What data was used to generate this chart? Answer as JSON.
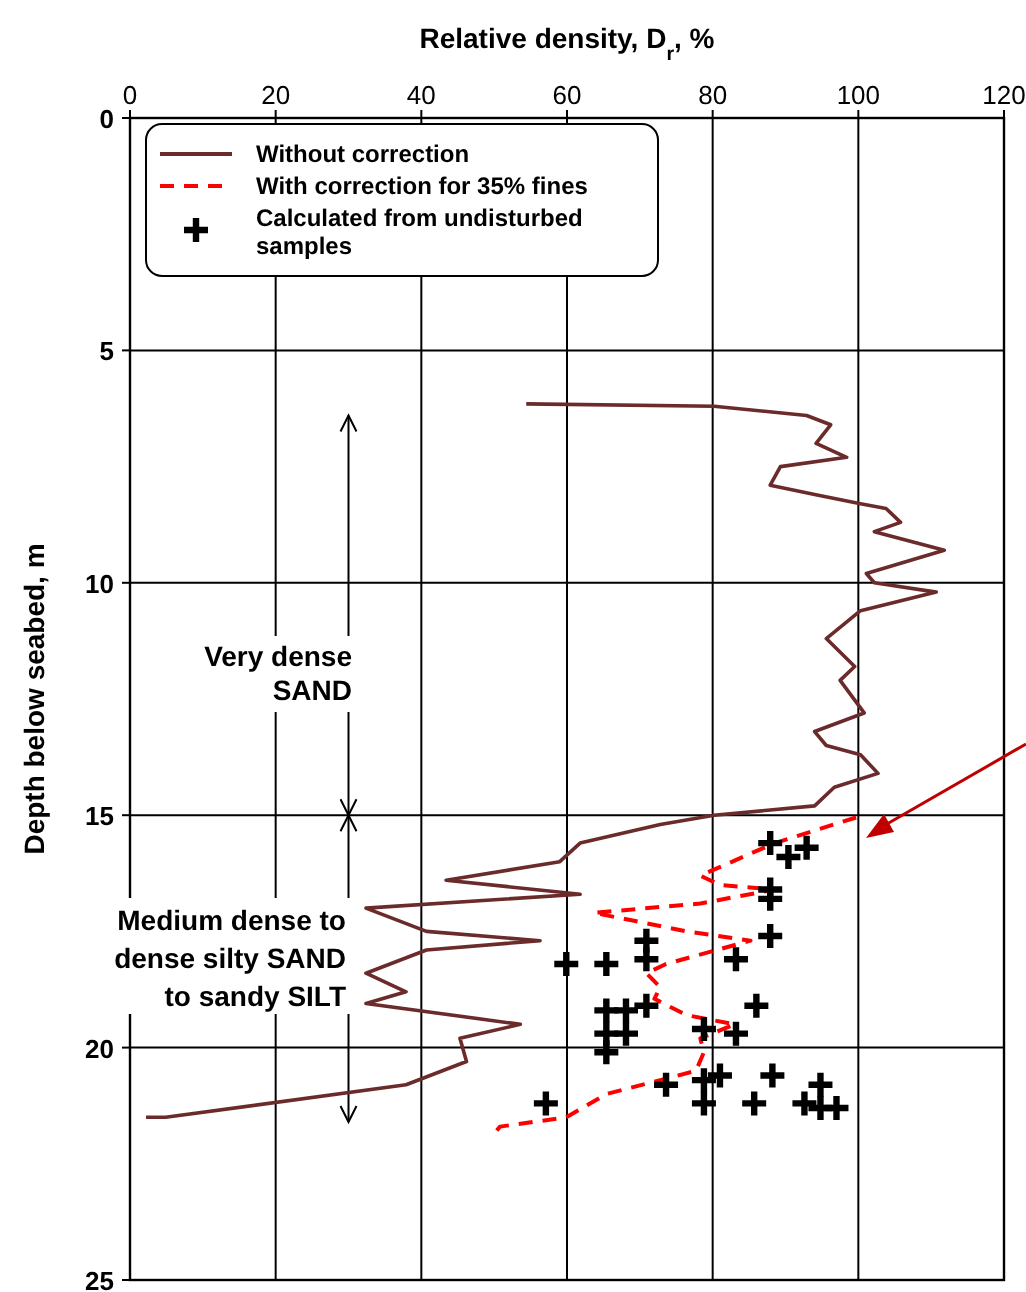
{
  "chart_data": {
    "type": "line",
    "xlabel": "Relative density, D$_{r}$, %",
    "ylabel": "Depth below seabed, m",
    "xlim": [
      0,
      120
    ],
    "xticks": [
      0,
      20,
      40,
      60,
      80,
      100,
      120
    ],
    "ylim": [
      25,
      0
    ],
    "yticks": [
      0,
      5,
      10,
      15,
      20,
      25
    ],
    "grid": true,
    "legend": "top left",
    "annotations": [
      "Very dense SAND",
      "Medium dense to dense silty SAND to sandy SILT"
    ],
    "series": [
      {
        "name": "Without correction",
        "color": "#6b2b2b",
        "line_style": "solid",
        "x": [
          54.4,
          80.2,
          92.9,
          96.2,
          94.2,
          98.4,
          89.3,
          87.9,
          94,
          100.3,
          103.8,
          105.8,
          102.2,
          111.8,
          101.1,
          102.2,
          110.7,
          100.3,
          95.6,
          99.5,
          97.5,
          100.8,
          94,
          95.6,
          100.3,
          102.7,
          96.7,
          94,
          80.2,
          72.8,
          61.8,
          59,
          43.4,
          61.8,
          32.4,
          40.7,
          56.3,
          40.7,
          32.4,
          37.9,
          32.4,
          53.6,
          45.3,
          46.2,
          37.9,
          4.9,
          2.2
        ],
        "values": [
          6.15,
          6.2,
          6.4,
          6.6,
          7.0,
          7.3,
          7.5,
          7.9,
          8.1,
          8.3,
          8.4,
          8.7,
          8.9,
          9.3,
          9.8,
          10.0,
          10.2,
          10.6,
          11.2,
          11.8,
          12.1,
          12.8,
          13.2,
          13.5,
          13.7,
          14.1,
          14.4,
          14.8,
          15.0,
          15.2,
          15.6,
          16.0,
          16.4,
          16.7,
          17.0,
          17.5,
          17.7,
          17.9,
          18.4,
          18.8,
          19.05,
          19.5,
          19.8,
          20.3,
          20.8,
          21.5,
          21.5
        ]
      },
      {
        "name": "With correction for 35% fines",
        "color": "#ff0000",
        "line_style": "dashed",
        "x": [
          99.7,
          88.5,
          78.3,
          81,
          88.5,
          78.3,
          63.7,
          76.4,
          85.2,
          73.6,
          70.9,
          72.8,
          72,
          76.4,
          83,
          78.3,
          78.8,
          77.7,
          65.4,
          59.9,
          50.8,
          50
        ],
        "values": [
          15.05,
          15.6,
          16.3,
          16.5,
          16.6,
          16.9,
          17.1,
          17.5,
          17.7,
          18.2,
          18.4,
          18.7,
          18.95,
          19.3,
          19.5,
          19.8,
          20.1,
          20.5,
          21.0,
          21.5,
          21.7,
          21.85
        ]
      },
      {
        "name": "Calculated from undisturbed samples",
        "type": "scatter",
        "color": "#000000",
        "marker": "cross",
        "x": [
          87.9,
          90.4,
          92.9,
          87.9,
          87.9,
          87.9,
          70.9,
          70.9,
          59.9,
          65.4,
          83.2,
          86,
          70.9,
          65.4,
          68.1,
          65.4,
          68.1,
          65.4,
          78.8,
          83.2,
          73.6,
          78.8,
          81,
          78.8,
          85.7,
          88.2,
          94.8,
          92.6,
          94.8,
          97,
          57.1
        ],
        "values": [
          15.6,
          15.9,
          15.7,
          16.6,
          16.8,
          17.6,
          17.7,
          18.1,
          18.2,
          18.2,
          18.1,
          19.1,
          19.1,
          19.2,
          19.2,
          19.7,
          19.7,
          20.1,
          19.6,
          19.7,
          20.8,
          20.7,
          20.6,
          21.2,
          21.2,
          20.6,
          20.8,
          21.2,
          21.3,
          21.3,
          21.2
        ]
      }
    ]
  }
}
